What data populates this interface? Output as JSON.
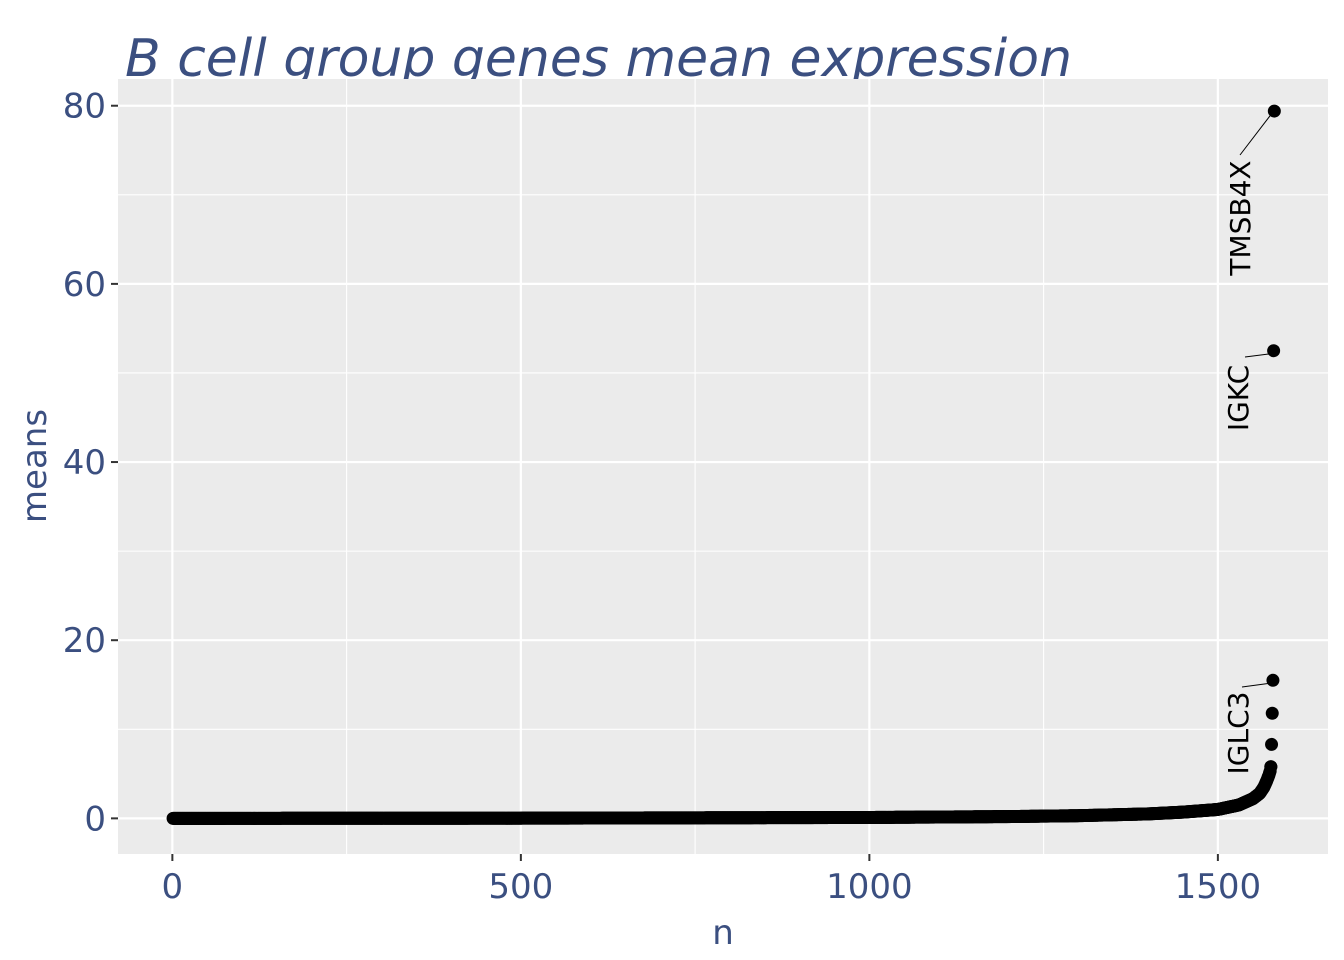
{
  "chart_data": {
    "type": "scatter",
    "title": "B cell group genes mean expression",
    "xlabel": "n",
    "ylabel": "means",
    "xlim": [
      -78,
      1658
    ],
    "ylim": [
      -4,
      83
    ],
    "x_ticks": [
      0,
      500,
      1000,
      1500
    ],
    "x_tick_labels": [
      "0",
      "500",
      "1000",
      "1500"
    ],
    "y_ticks": [
      0,
      20,
      40,
      60,
      80
    ],
    "y_tick_labels": [
      "0",
      "20",
      "40",
      "60",
      "80"
    ],
    "grid": true,
    "legend": "none",
    "n_points": 1579,
    "points": [
      {
        "x": 1,
        "y": 0.0
      },
      {
        "x": 500,
        "y": 0.02
      },
      {
        "x": 1000,
        "y": 0.1
      },
      {
        "x": 1200,
        "y": 0.2
      },
      {
        "x": 1300,
        "y": 0.3
      },
      {
        "x": 1400,
        "y": 0.5
      },
      {
        "x": 1450,
        "y": 0.7
      },
      {
        "x": 1500,
        "y": 1.0
      },
      {
        "x": 1530,
        "y": 1.5
      },
      {
        "x": 1550,
        "y": 2.2
      },
      {
        "x": 1560,
        "y": 2.8
      },
      {
        "x": 1566,
        "y": 3.5
      },
      {
        "x": 1570,
        "y": 4.2
      },
      {
        "x": 1573,
        "y": 4.8
      },
      {
        "x": 1575,
        "y": 5.3
      },
      {
        "x": 1576,
        "y": 5.8
      },
      {
        "x": 1577,
        "y": 8.3
      },
      {
        "x": 1578,
        "y": 11.8
      },
      {
        "x": 1579,
        "y": 15.5
      },
      {
        "x": 1580,
        "y": 52.5
      },
      {
        "x": 1581,
        "y": 79.4
      }
    ],
    "labeled_points": [
      {
        "gene": "TMSB4X",
        "x": 1581,
        "y": 79.4
      },
      {
        "gene": "IGKC",
        "x": 1580,
        "y": 52.5
      },
      {
        "gene": "IGLC3",
        "x": 1579,
        "y": 15.5
      }
    ],
    "colors": {
      "panel": "#ebebeb",
      "grid": "#ffffff",
      "points": "#000000",
      "text": "#3b4f80"
    }
  }
}
